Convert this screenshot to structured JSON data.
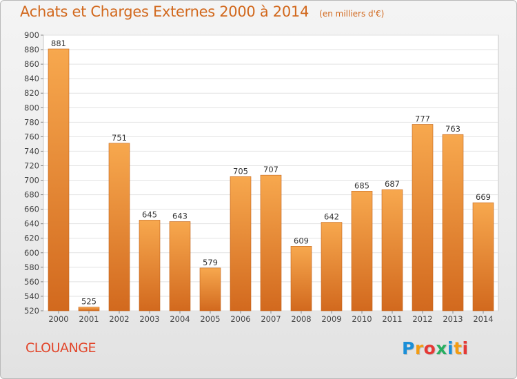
{
  "header": {
    "title": "Achats et Charges Externes 2000 à 2014",
    "subtitle": "(en milliers d'€)"
  },
  "footer": {
    "commune": "CLOUANGE",
    "logo_text": "Proxiti",
    "logo_colors": [
      "#1a8fd8",
      "#f39c12",
      "#e53935",
      "#27ae60",
      "#1a8fd8",
      "#f39c12",
      "#e53935"
    ]
  },
  "chart_data": {
    "type": "bar",
    "categories": [
      "2000",
      "2001",
      "2002",
      "2003",
      "2004",
      "2005",
      "2006",
      "2007",
      "2008",
      "2009",
      "2010",
      "2011",
      "2012",
      "2013",
      "2014"
    ],
    "values": [
      881,
      525,
      751,
      645,
      643,
      579,
      705,
      707,
      609,
      642,
      685,
      687,
      777,
      763,
      669
    ],
    "ylim": [
      520,
      900
    ],
    "yticks": [
      520,
      540,
      560,
      580,
      600,
      620,
      640,
      660,
      680,
      700,
      720,
      740,
      760,
      780,
      800,
      820,
      840,
      860,
      880,
      900
    ],
    "grid": true,
    "bar_color_top": "#f7a84e",
    "bar_color_bottom": "#d2691e"
  }
}
